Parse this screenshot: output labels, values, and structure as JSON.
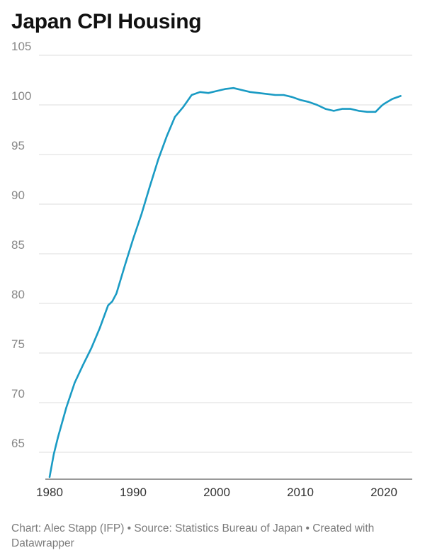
{
  "chart_data": {
    "type": "line",
    "title": "Japan CPI Housing",
    "xlabel": "",
    "ylabel": "",
    "xlim": [
      1980,
      2023
    ],
    "ylim": [
      62,
      105
    ],
    "y_ticks": [
      65,
      70,
      75,
      80,
      85,
      90,
      95,
      100,
      105
    ],
    "x_ticks": [
      1980,
      1990,
      2000,
      2010,
      2020
    ],
    "grid": "horizontal",
    "line_color": "#1a9bc4",
    "series": [
      {
        "x": [
          1980,
          1980.5,
          1981,
          1982,
          1983,
          1984,
          1985,
          1986,
          1987,
          1987.5,
          1988,
          1989,
          1990,
          1991,
          1992,
          1993,
          1994,
          1995,
          1996,
          1997,
          1998,
          1999,
          2000,
          2001,
          2002,
          2003,
          2004,
          2005,
          2006,
          2007,
          2008,
          2009,
          2010,
          2011,
          2012,
          2013,
          2014,
          2015,
          2016,
          2017,
          2018,
          2019,
          2019.7,
          2020,
          2021,
          2022
        ],
        "values": [
          62.5,
          64.8,
          66.5,
          69.5,
          72.0,
          73.8,
          75.5,
          77.5,
          79.8,
          80.2,
          81.0,
          83.8,
          86.5,
          89.0,
          91.8,
          94.5,
          96.8,
          98.8,
          99.8,
          101.0,
          101.3,
          101.2,
          101.4,
          101.6,
          101.7,
          101.5,
          101.3,
          101.2,
          101.1,
          101.0,
          101.0,
          100.8,
          100.5,
          100.3,
          100.0,
          99.6,
          99.4,
          99.6,
          99.6,
          99.4,
          99.3,
          99.3,
          99.9,
          100.1,
          100.6,
          100.9
        ]
      }
    ]
  },
  "footer": {
    "line1": "Chart: Alec Stapp (IFP) • Source: Statistics Bureau of Japan • Created with",
    "line2": "Datawrapper"
  }
}
